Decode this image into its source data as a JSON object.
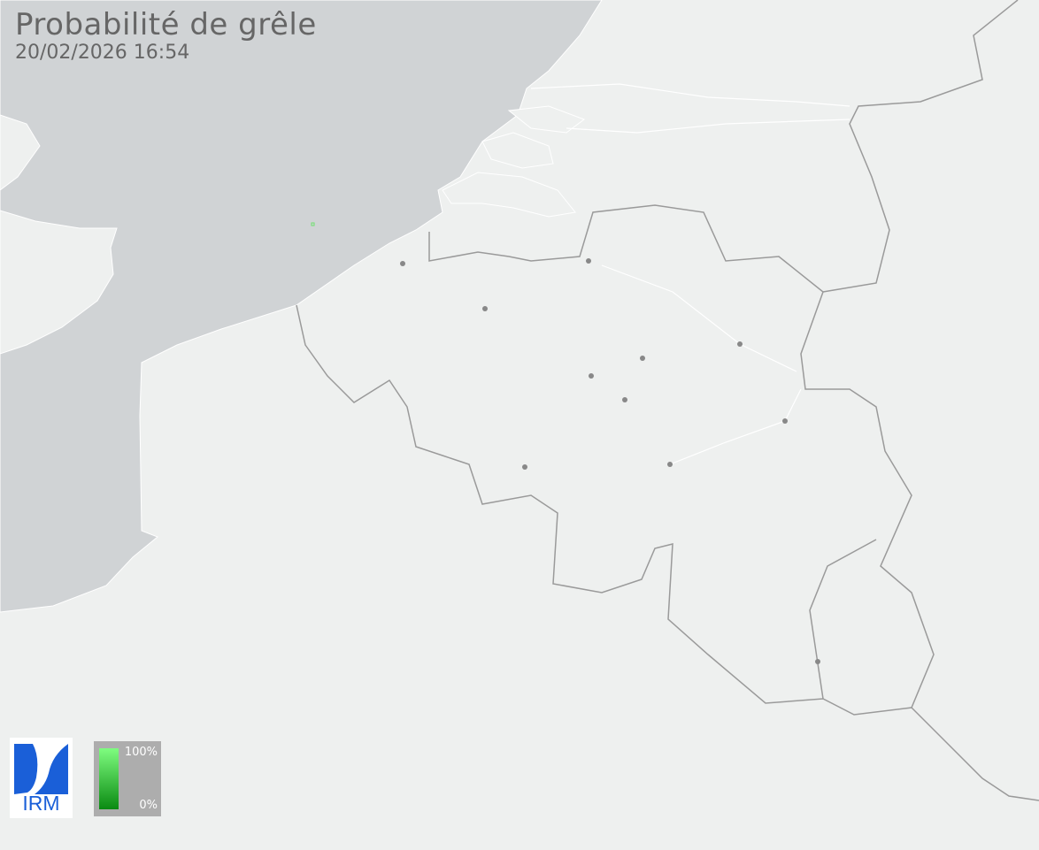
{
  "title": "Probabilité de grêle",
  "timestamp": "20/02/2026 16:54",
  "logo": {
    "text": "IRM",
    "color": "#1a5fd8"
  },
  "legend": {
    "max_label": "100%",
    "min_label": "0%",
    "color_top": "#7ffd80",
    "color_bottom": "#0a8a12"
  },
  "colors": {
    "land": "#eef0ef",
    "sea": "#d0d3d5",
    "border": "#9a9a9a",
    "city": "#888888"
  },
  "hail_cells": [
    {
      "probability_color": "#6fe06f"
    }
  ]
}
